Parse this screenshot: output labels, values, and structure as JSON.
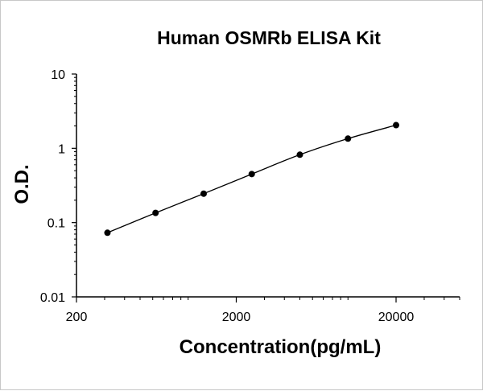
{
  "chart_data": {
    "type": "scatter",
    "title": "Human OSMRb ELISA Kit",
    "xlabel": "Concentration(pg/mL)",
    "ylabel": "O.D.",
    "x_scale": "log",
    "y_scale": "log",
    "xlim": [
      200,
      50000
    ],
    "ylim": [
      0.01,
      10
    ],
    "x_ticks": [
      {
        "value": 200,
        "label": "200"
      },
      {
        "value": 2000,
        "label": "2000"
      },
      {
        "value": 20000,
        "label": "20000"
      }
    ],
    "y_ticks": [
      {
        "value": 0.01,
        "label": "0.01"
      },
      {
        "value": 0.1,
        "label": "0.1"
      },
      {
        "value": 1,
        "label": "1"
      },
      {
        "value": 10,
        "label": "10"
      }
    ],
    "grid": false,
    "legend": "none",
    "series": [
      {
        "points": [
          {
            "x": 312.5,
            "y": 0.073
          },
          {
            "x": 625,
            "y": 0.135
          },
          {
            "x": 1250,
            "y": 0.245
          },
          {
            "x": 2500,
            "y": 0.45
          },
          {
            "x": 5000,
            "y": 0.82
          },
          {
            "x": 10000,
            "y": 1.35
          },
          {
            "x": 20000,
            "y": 2.05
          }
        ],
        "fit_line": true,
        "color": "#000000"
      }
    ]
  }
}
